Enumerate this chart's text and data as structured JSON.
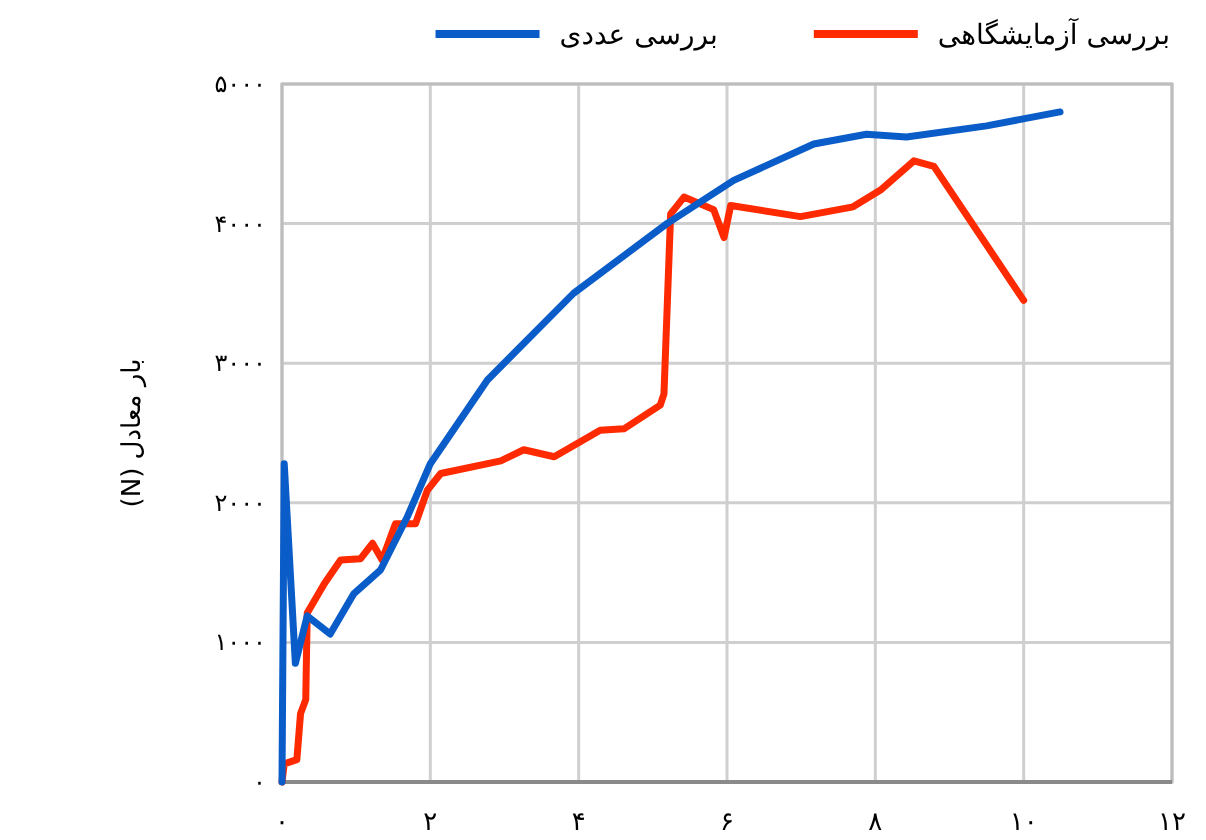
{
  "chart_data": {
    "type": "line",
    "ylabel": "بار معادل (N)",
    "xlim": [
      0,
      12
    ],
    "xticks": [
      {
        "value": 0,
        "label": "۰"
      },
      {
        "value": 2,
        "label": "۲"
      },
      {
        "value": 4,
        "label": "۴"
      },
      {
        "value": 6,
        "label": "۶"
      },
      {
        "value": 8,
        "label": "۸"
      },
      {
        "value": 10,
        "label": "۱۰"
      },
      {
        "value": 12,
        "label": "۱۲"
      }
    ],
    "ylim": [
      0,
      5000
    ],
    "yticks": [
      {
        "value": 0,
        "label": "۰"
      },
      {
        "value": 1000,
        "label": "۱۰۰۰"
      },
      {
        "value": 2000,
        "label": "۲۰۰۰"
      },
      {
        "value": 3000,
        "label": "۳۰۰۰"
      },
      {
        "value": 4000,
        "label": "۴۰۰۰"
      },
      {
        "value": 5000,
        "label": "۵۰۰۰"
      }
    ],
    "grid": true,
    "legend": "top",
    "line_style": "solid",
    "marker": "none",
    "series": [
      {
        "name": "بررسی آزمایشگاهی",
        "color": "#ff2a00",
        "x": [
          0,
          0.03,
          0.2,
          0.25,
          0.32,
          0.34,
          0.57,
          0.79,
          1.06,
          1.22,
          1.35,
          1.53,
          1.8,
          1.96,
          2.14,
          2.95,
          3.26,
          3.67,
          4.29,
          4.61,
          5.1,
          5.15,
          5.24,
          5.42,
          5.82,
          5.96,
          6.05,
          6.99,
          7.7,
          8.07,
          8.52,
          8.79,
          10.0
        ],
        "values": [
          0,
          130,
          160,
          490,
          590,
          1210,
          1420,
          1590,
          1600,
          1710,
          1590,
          1850,
          1850,
          2090,
          2210,
          2300,
          2380,
          2330,
          2520,
          2530,
          2700,
          2780,
          4070,
          4190,
          4100,
          3900,
          4130,
          4050,
          4120,
          4240,
          4450,
          4410,
          3450
        ]
      },
      {
        "name": "بررسی عددی",
        "color": "#0a5cc8",
        "x": [
          0,
          0.03,
          0.18,
          0.34,
          0.65,
          0.97,
          1.33,
          1.69,
          2.0,
          2.77,
          3.93,
          5.19,
          6.09,
          7.17,
          7.88,
          8.42,
          9.5,
          10.49
        ],
        "values": [
          0,
          2280,
          850,
          1190,
          1060,
          1350,
          1520,
          1900,
          2280,
          2880,
          3500,
          4000,
          4310,
          4570,
          4640,
          4620,
          4700,
          4800
        ]
      }
    ]
  }
}
